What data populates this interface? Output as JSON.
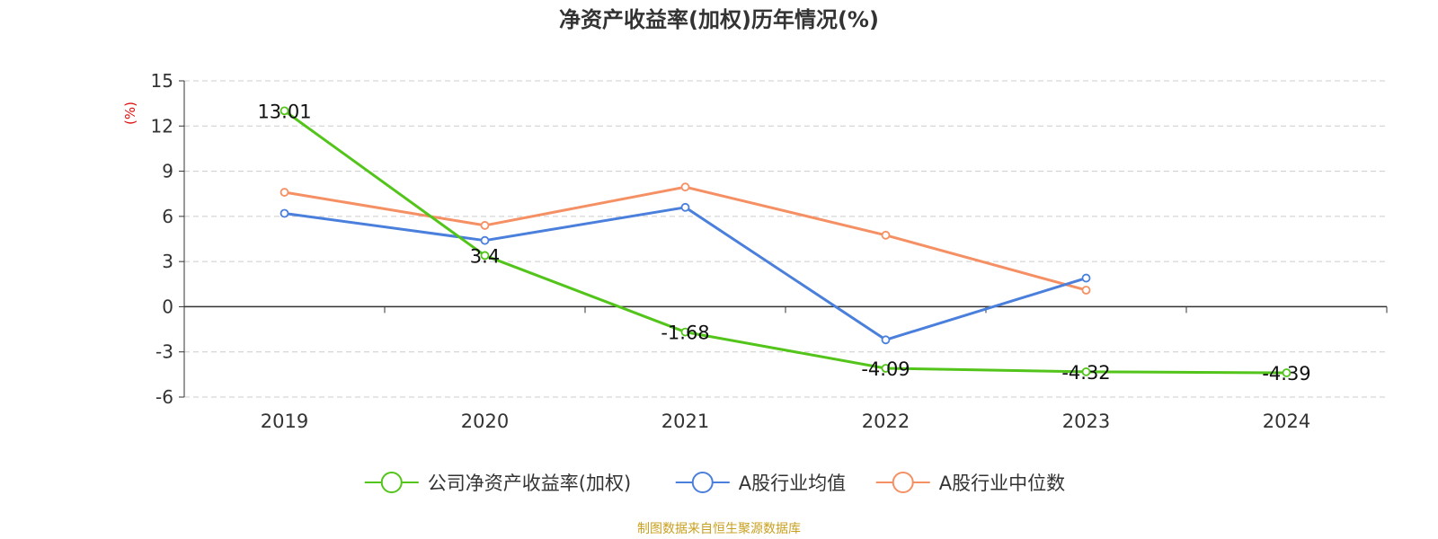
{
  "chart_data": {
    "type": "line",
    "title": "净资产收益率(加权)历年情况(%)",
    "ylabel": "(%)",
    "xlabel": "",
    "categories": [
      "2019",
      "2020",
      "2021",
      "2022",
      "2023",
      "2024"
    ],
    "ylim": [
      -6,
      15
    ],
    "yticks": [
      -6,
      -3,
      0,
      3,
      6,
      9,
      12,
      15
    ],
    "grid": true,
    "legend_position": "bottom",
    "series": [
      {
        "name": "公司净资产收益率(加权)",
        "color": "#52c41a",
        "values": [
          13.01,
          3.4,
          -1.68,
          -4.09,
          -4.32,
          -4.39
        ],
        "data_labels": [
          "13.01",
          "3.4",
          "-1.68",
          "-4.09",
          "-4.32",
          "-4.39"
        ]
      },
      {
        "name": "A股行业均值",
        "color": "#4a7fdc",
        "values": [
          6.2,
          4.4,
          6.6,
          -2.2,
          1.9,
          null
        ]
      },
      {
        "name": "A股行业中位数",
        "color": "#f59064",
        "values": [
          7.6,
          5.4,
          7.95,
          4.75,
          1.1,
          null
        ]
      }
    ]
  },
  "source_note": "制图数据来自恒生聚源数据库",
  "colors": {
    "ylabel": "#e01010",
    "source": "#c8a020"
  }
}
